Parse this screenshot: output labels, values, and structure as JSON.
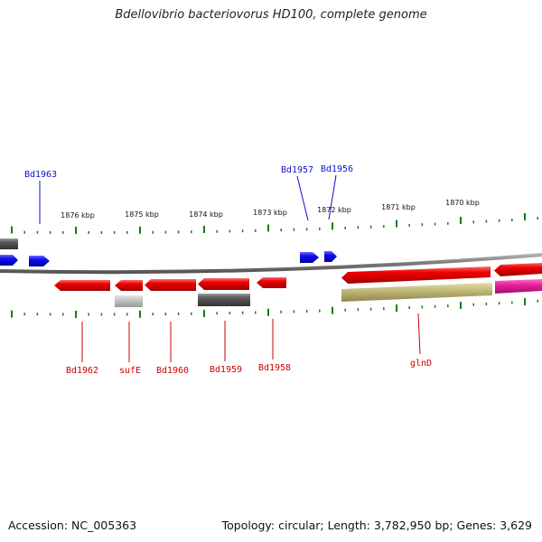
{
  "title": "Bdellovibrio bacteriovorus HD100, complete genome",
  "footer": {
    "accession": "Accession: NC_005363",
    "stats": "Topology: circular; Length: 3,782,950 bp; Genes: 3,629"
  },
  "colors": {
    "forward_gene": "#1010e8",
    "reverse_gene": "#e80000",
    "backbone": "#808080",
    "tick": "#1a7a1a",
    "pseudo_gray": "#606060",
    "light_gray": "#c0c0c0",
    "olive": "#c0b878",
    "magenta": "#e0209a"
  },
  "scale_labels": [
    "1876 kbp",
    "1875 kbp",
    "1874 kbp",
    "1873 kbp",
    "1872 kbp",
    "1871 kbp",
    "1870 kbp"
  ],
  "gene_labels": {
    "forward": [
      "Bd1963",
      "Bd1957",
      "Bd1956"
    ],
    "reverse": [
      "Bd1962",
      "sufE",
      "Bd1960",
      "Bd1959",
      "Bd1958",
      "glnD"
    ]
  }
}
